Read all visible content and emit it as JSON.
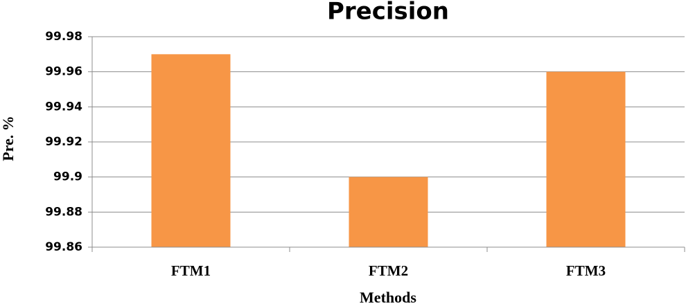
{
  "chart_data": {
    "type": "bar",
    "title": "Precision",
    "y_label": "Pre. %",
    "x_label": "Methods",
    "categories": [
      "FTM1",
      "FTM2",
      "FTM3"
    ],
    "values": [
      99.97,
      99.9,
      99.96
    ],
    "color": "#f79646",
    "ylim": [
      99.86,
      99.98
    ],
    "yticks": [
      99.86,
      99.88,
      99.9,
      99.92,
      99.94,
      99.96,
      99.98
    ],
    "grid": true
  }
}
